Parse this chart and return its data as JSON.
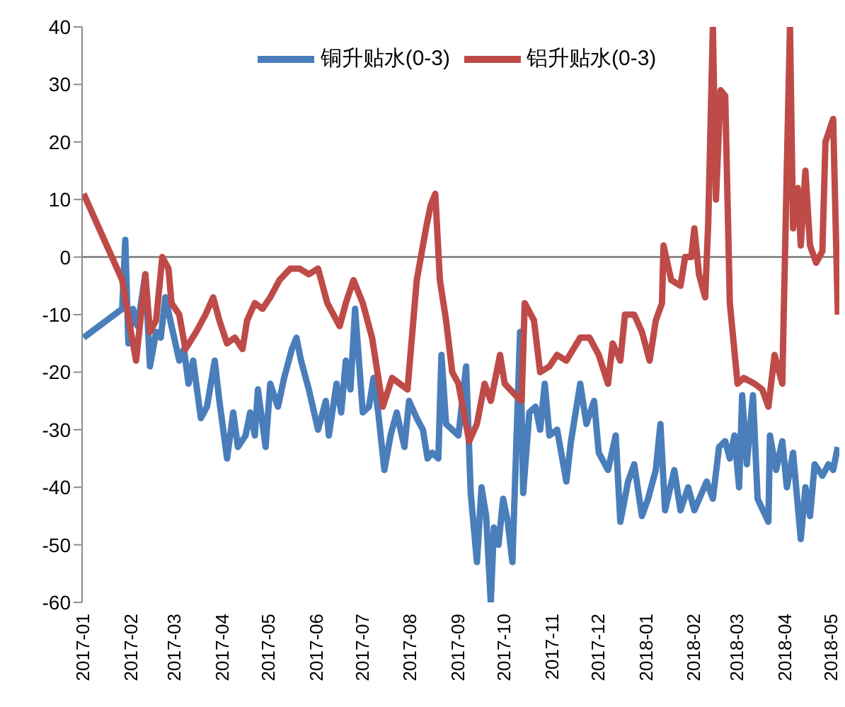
{
  "chart_data": {
    "type": "line",
    "xlim": [
      "2017-01-01",
      "2018-05-07"
    ],
    "xticks": [
      "2017-01",
      "2017-02",
      "2017-03",
      "2017-04",
      "2017-05",
      "2017-06",
      "2017-07",
      "2017-08",
      "2017-09",
      "2017-10",
      "2017-11",
      "2017-12",
      "2018-01",
      "2018-02",
      "2018-03",
      "2018-04",
      "2018-05"
    ],
    "ylim": [
      -60,
      40
    ],
    "yticks": [
      -60,
      -50,
      -40,
      -30,
      -20,
      -10,
      0,
      10,
      20,
      30,
      40
    ],
    "legend": "top",
    "marker": "none",
    "line_style": "solid",
    "ref_lines": [
      {
        "axis": "y",
        "value": 0,
        "color": "#8c8c8c"
      }
    ],
    "series": [
      {
        "name": "铜升贴水(0-3)",
        "color": "#4a7ebb",
        "x": [
          "2017-01-02",
          "2017-01-27",
          "2017-01-29",
          "2017-01-31",
          "2017-02-03",
          "2017-02-06",
          "2017-02-11",
          "2017-02-14",
          "2017-02-18",
          "2017-02-21",
          "2017-02-24",
          "2017-02-28",
          "2017-03-05",
          "2017-03-08",
          "2017-03-11",
          "2017-03-14",
          "2017-03-19",
          "2017-03-23",
          "2017-03-28",
          "2017-03-31",
          "2017-04-05",
          "2017-04-09",
          "2017-04-12",
          "2017-04-17",
          "2017-04-20",
          "2017-04-23",
          "2017-04-25",
          "2017-04-30",
          "2017-05-03",
          "2017-05-08",
          "2017-05-12",
          "2017-05-17",
          "2017-05-20",
          "2017-05-23",
          "2017-05-28",
          "2017-06-03",
          "2017-06-08",
          "2017-06-10",
          "2017-06-15",
          "2017-06-18",
          "2017-06-21",
          "2017-06-24",
          "2017-06-27",
          "2017-07-02",
          "2017-07-06",
          "2017-07-09",
          "2017-07-12",
          "2017-07-16",
          "2017-07-20",
          "2017-07-24",
          "2017-07-29",
          "2017-08-01",
          "2017-08-06",
          "2017-08-10",
          "2017-08-13",
          "2017-08-16",
          "2017-08-20",
          "2017-08-22",
          "2017-08-25",
          "2017-08-29",
          "2017-09-02",
          "2017-09-07",
          "2017-09-10",
          "2017-09-14",
          "2017-09-17",
          "2017-09-20",
          "2017-09-23",
          "2017-09-25",
          "2017-09-28",
          "2017-10-01",
          "2017-10-04",
          "2017-10-07",
          "2017-10-12",
          "2017-10-14",
          "2017-10-18",
          "2017-10-22",
          "2017-10-25",
          "2017-10-28",
          "2017-10-31",
          "2017-11-05",
          "2017-11-11",
          "2017-11-14",
          "2017-11-20",
          "2017-11-24",
          "2017-11-29",
          "2017-12-02",
          "2017-12-08",
          "2017-12-13",
          "2017-12-16",
          "2017-12-21",
          "2017-12-25",
          "2017-12-30",
          "2018-01-03",
          "2018-01-08",
          "2018-01-11",
          "2018-01-14",
          "2018-01-20",
          "2018-01-24",
          "2018-01-29",
          "2018-02-02",
          "2018-02-10",
          "2018-02-14",
          "2018-02-18",
          "2018-02-22",
          "2018-02-25",
          "2018-02-28",
          "2018-03-03",
          "2018-03-05",
          "2018-03-08",
          "2018-03-12",
          "2018-03-15",
          "2018-03-22",
          "2018-03-23",
          "2018-03-27",
          "2018-03-31",
          "2018-04-03",
          "2018-04-07",
          "2018-04-12",
          "2018-04-15",
          "2018-04-18",
          "2018-04-21",
          "2018-04-26",
          "2018-04-30",
          "2018-05-03",
          "2018-05-06"
        ],
        "values": [
          -14,
          -9,
          3,
          -15,
          -9,
          -12,
          -3,
          -19,
          -13,
          -14,
          -7,
          -12,
          -18,
          -16,
          -22,
          -18,
          -28,
          -26,
          -18,
          -25,
          -35,
          -27,
          -33,
          -31,
          -27,
          -31,
          -23,
          -33,
          -22,
          -26,
          -21,
          -16,
          -14,
          -18,
          -23,
          -30,
          -25,
          -31,
          -22,
          -27,
          -18,
          -23,
          -9,
          -27,
          -26,
          -21,
          -27,
          -37,
          -31,
          -27,
          -33,
          -25,
          -28,
          -30,
          -35,
          -34,
          -35,
          -17,
          -29,
          -30,
          -31,
          -19,
          -41,
          -53,
          -40,
          -45,
          -60,
          -47,
          -50,
          -42,
          -46,
          -53,
          -13,
          -41,
          -27,
          -26,
          -30,
          -22,
          -31,
          -30,
          -39,
          -32,
          -22,
          -29,
          -25,
          -34,
          -37,
          -31,
          -46,
          -39,
          -36,
          -45,
          -42,
          -37,
          -29,
          -44,
          -37,
          -44,
          -40,
          -44,
          -39,
          -42,
          -33,
          -32,
          -35,
          -31,
          -40,
          -24,
          -36,
          -24,
          -42,
          -46,
          -31,
          -37,
          -32,
          -40,
          -34,
          -49,
          -40,
          -45,
          -36,
          -38,
          -36,
          -37,
          -33
        ]
      },
      {
        "name": "铝升贴水(0-3)",
        "color": "#be4b48",
        "x": [
          "2017-01-02",
          "2017-01-27",
          "2017-02-01",
          "2017-02-05",
          "2017-02-07",
          "2017-02-11",
          "2017-02-14",
          "2017-02-18",
          "2017-02-22",
          "2017-02-26",
          "2017-02-28",
          "2017-03-05",
          "2017-03-09",
          "2017-03-16",
          "2017-03-22",
          "2017-03-27",
          "2017-03-31",
          "2017-04-05",
          "2017-04-10",
          "2017-04-15",
          "2017-04-18",
          "2017-04-23",
          "2017-04-28",
          "2017-05-03",
          "2017-05-09",
          "2017-05-16",
          "2017-05-22",
          "2017-05-28",
          "2017-06-03",
          "2017-06-09",
          "2017-06-17",
          "2017-06-21",
          "2017-06-26",
          "2017-07-02",
          "2017-07-08",
          "2017-07-15",
          "2017-07-21",
          "2017-07-31",
          "2017-08-06",
          "2017-08-12",
          "2017-08-15",
          "2017-08-18",
          "2017-08-21",
          "2017-08-25",
          "2017-08-29",
          "2017-09-02",
          "2017-09-09",
          "2017-09-14",
          "2017-09-19",
          "2017-09-23",
          "2017-09-29",
          "2017-10-02",
          "2017-10-09",
          "2017-10-13",
          "2017-10-15",
          "2017-10-21",
          "2017-10-25",
          "2017-10-31",
          "2017-11-05",
          "2017-11-11",
          "2017-11-20",
          "2017-11-26",
          "2017-12-02",
          "2017-12-08",
          "2017-12-11",
          "2017-12-16",
          "2017-12-19",
          "2017-12-25",
          "2017-12-30",
          "2018-01-04",
          "2018-01-08",
          "2018-01-12",
          "2018-01-13",
          "2018-01-18",
          "2018-01-24",
          "2018-01-27",
          "2018-01-31",
          "2018-02-02",
          "2018-02-05",
          "2018-02-09",
          "2018-02-11",
          "2018-02-14",
          "2018-02-16",
          "2018-02-19",
          "2018-02-22",
          "2018-02-25",
          "2018-03-02",
          "2018-03-06",
          "2018-03-13",
          "2018-03-18",
          "2018-03-22",
          "2018-03-26",
          "2018-03-31",
          "2018-04-03",
          "2018-04-05",
          "2018-04-07",
          "2018-04-10",
          "2018-04-12",
          "2018-04-15",
          "2018-04-18",
          "2018-04-22",
          "2018-04-26",
          "2018-04-28",
          "2018-05-03",
          "2018-05-06"
        ],
        "values": [
          11,
          -4,
          -12,
          -18,
          -13,
          -3,
          -13,
          -11,
          0,
          -2,
          -8,
          -10,
          -16,
          -13,
          -10,
          -7,
          -11,
          -15,
          -14,
          -16,
          -11,
          -8,
          -9,
          -7,
          -4,
          -2,
          -2,
          -3,
          -2,
          -8,
          -12,
          -8,
          -4,
          -8,
          -14,
          -26,
          -21,
          -23,
          -4,
          5,
          9,
          11,
          -4,
          -11,
          -20,
          -22,
          -32,
          -29,
          -22,
          -25,
          -17,
          -22,
          -24,
          -25,
          -8,
          -11,
          -20,
          -19,
          -17,
          -18,
          -14,
          -14,
          -17,
          -22,
          -15,
          -18,
          -10,
          -10,
          -13,
          -18,
          -11,
          -8,
          2,
          -4,
          -5,
          0,
          0,
          5,
          -3,
          -7,
          6,
          40,
          10,
          29,
          28,
          -8,
          -22,
          -21,
          -22,
          -23,
          -26,
          -17,
          -22,
          16,
          40,
          5,
          12,
          2,
          15,
          2,
          -1,
          1,
          20,
          24,
          -10
        ]
      }
    ]
  }
}
